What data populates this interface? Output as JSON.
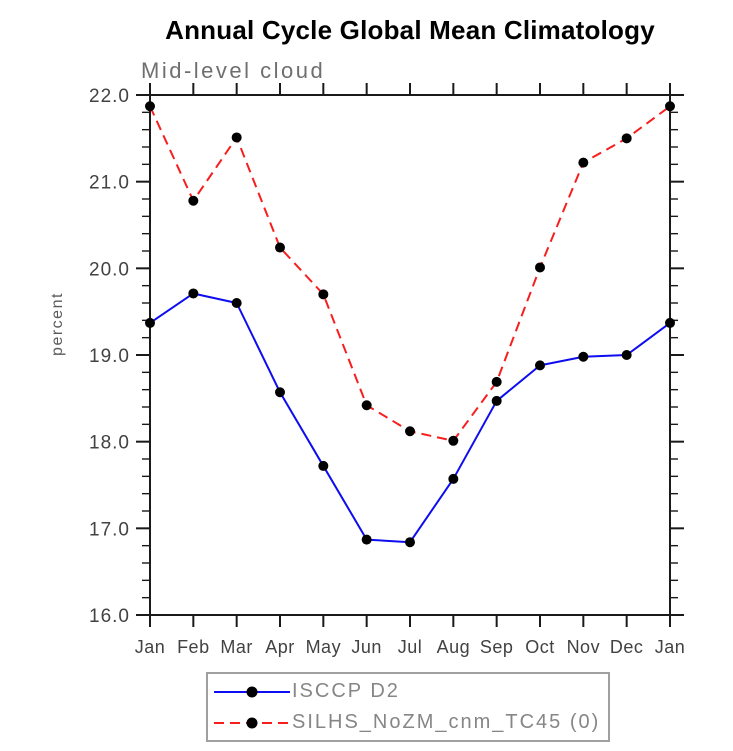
{
  "chart_data": {
    "type": "line",
    "title": "Annual Cycle Global Mean Climatology",
    "subtitle": "Mid-level cloud",
    "ylabel": "percent",
    "x_categories": [
      "Jan",
      "Feb",
      "Mar",
      "Apr",
      "May",
      "Jun",
      "Jul",
      "Aug",
      "Sep",
      "Oct",
      "Nov",
      "Dec",
      "Jan"
    ],
    "ylim": [
      16.0,
      22.0
    ],
    "y_major_ticks": [
      16.0,
      17.0,
      18.0,
      19.0,
      20.0,
      21.0,
      22.0
    ],
    "y_tick_labels": [
      "16.0",
      "17.0",
      "18.0",
      "19.0",
      "20.0",
      "21.0",
      "22.0"
    ],
    "y_minor_step": 0.2,
    "grid": false,
    "legend_position": "bottom",
    "tick_direction": "outward",
    "series": [
      {
        "name": "ISCCP D2",
        "color": "#0d0df0",
        "style": "solid",
        "marker": "circle",
        "marker_color": "#000000",
        "values": [
          19.37,
          19.71,
          19.6,
          18.57,
          17.72,
          16.87,
          16.84,
          17.57,
          18.47,
          18.88,
          18.98,
          19.0,
          19.37
        ]
      },
      {
        "name": "SILHS_NoZM_cnm_TC45 (0)",
        "color": "#f81e1e",
        "style": "dashed",
        "marker": "circle",
        "marker_color": "#000000",
        "values": [
          21.87,
          20.78,
          21.51,
          20.24,
          19.7,
          18.42,
          18.12,
          18.01,
          18.69,
          20.01,
          21.22,
          21.5,
          21.87
        ]
      }
    ]
  },
  "colors": {
    "axis": "#1a1a1a",
    "tick_label": "#424242",
    "subtitle": "#6f6f6f",
    "legend_text": "#868686"
  }
}
